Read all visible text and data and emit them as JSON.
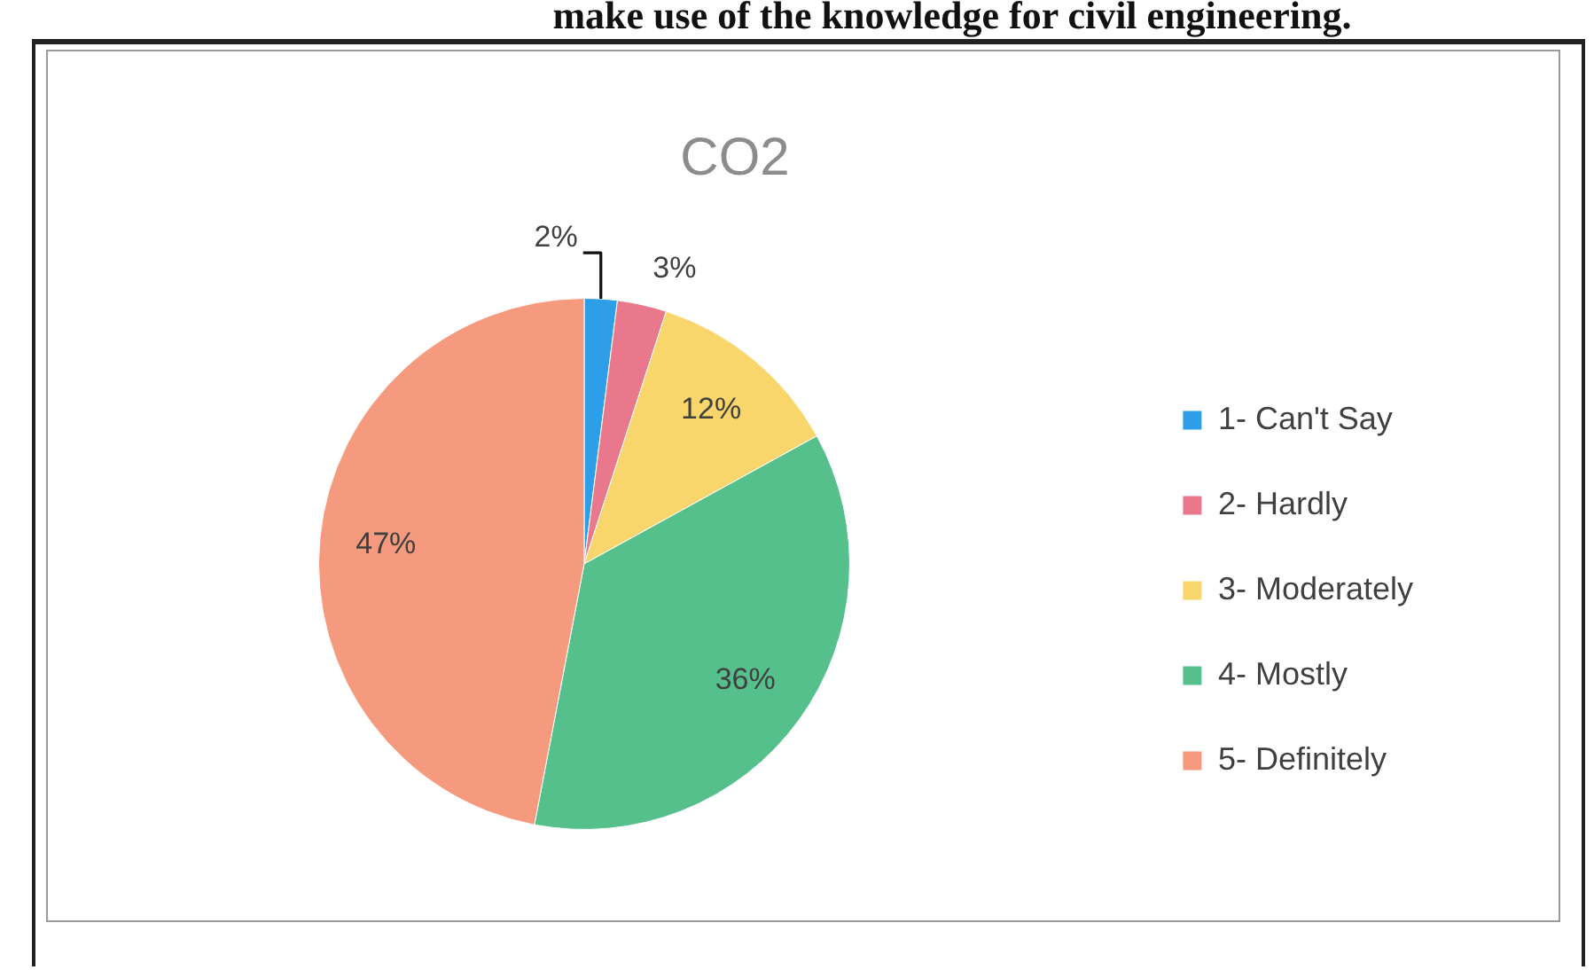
{
  "chart_data": {
    "type": "pie",
    "title": "CO2",
    "categories": [
      "1- Can't Say",
      "2- Hardly",
      "3- Moderately",
      "4- Mostly",
      "5- Definitely"
    ],
    "values": [
      2,
      3,
      12,
      36,
      47
    ],
    "colors": [
      "#2f9ee8",
      "#e9788c",
      "#f8d66c",
      "#55c08c",
      "#f59a7e"
    ],
    "value_labels": [
      "2%",
      "3%",
      "12%",
      "36%",
      "47%"
    ],
    "legend": "right",
    "annotations": [
      "make use of the knowledge for civil engineering."
    ]
  }
}
